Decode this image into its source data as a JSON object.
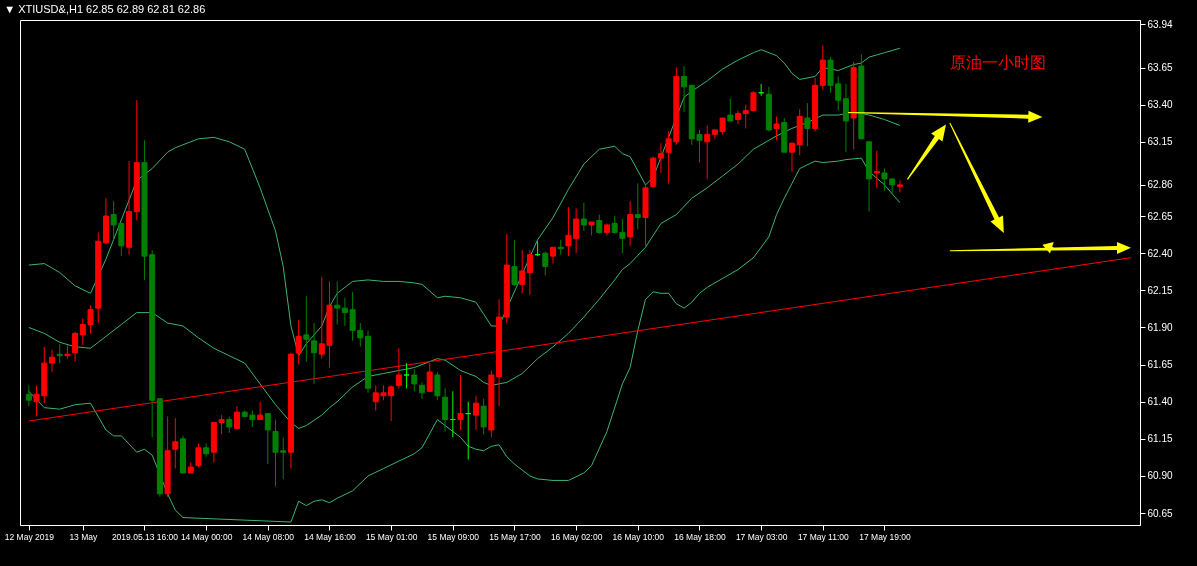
{
  "chart_data": {
    "type": "candlestick",
    "title": "▼ XTIUSD&,H1  62.85 62.89 62.81 62.86",
    "annotations": [
      "原油一小时图"
    ],
    "categories": [
      "12 May 2019",
      null,
      null,
      null,
      null,
      null,
      null,
      "13 May",
      null,
      null,
      null,
      null,
      null,
      null,
      null,
      "2019.05.13 16:00",
      null,
      null,
      null,
      null,
      null,
      null,
      null,
      "14 May 00:00",
      null,
      null,
      null,
      null,
      null,
      null,
      null,
      "14 May 08:00",
      null,
      null,
      null,
      null,
      null,
      null,
      null,
      "14 May 16:00",
      null,
      null,
      null,
      null,
      null,
      null,
      null,
      "15 May 01:00",
      null,
      null,
      null,
      null,
      null,
      null,
      null,
      "15 May 09:00",
      null,
      null,
      null,
      null,
      null,
      null,
      null,
      "15 May 17:00",
      null,
      null,
      null,
      null,
      null,
      null,
      null,
      "16 May 02:00",
      null,
      null,
      null,
      null,
      null,
      null,
      null,
      "16 May 10:00",
      null,
      null,
      null,
      null,
      null,
      null,
      null,
      "16 May 18:00",
      null,
      null,
      null,
      null,
      null,
      null,
      null,
      "17 May 03:00",
      null,
      null,
      null,
      null,
      null,
      null,
      null,
      "17 May 11:00",
      null,
      null,
      null,
      null,
      null,
      null,
      null,
      "17 May 19:00",
      null,
      null,
      null,
      null,
      null,
      null,
      null,
      null,
      null,
      null,
      null,
      null,
      null,
      null,
      null,
      null,
      null,
      null,
      null,
      null,
      null,
      null,
      null,
      null,
      null,
      null,
      null,
      null,
      null,
      null,
      null,
      null
    ],
    "ohlc": [
      [
        61.45,
        61.51,
        61.37,
        61.41
      ],
      [
        61.4,
        61.51,
        61.3,
        61.45
      ],
      [
        61.44,
        61.77,
        61.39,
        61.66
      ],
      [
        61.66,
        61.75,
        61.6,
        61.7
      ],
      [
        61.72,
        61.79,
        61.66,
        61.71
      ],
      [
        61.71,
        61.78,
        61.69,
        61.72
      ],
      [
        61.73,
        61.87,
        61.67,
        61.86
      ],
      [
        61.85,
        61.96,
        61.78,
        61.92
      ],
      [
        61.92,
        62.05,
        61.86,
        62.02
      ],
      [
        62.03,
        62.54,
        61.93,
        62.48
      ],
      [
        62.47,
        62.77,
        62.46,
        62.65
      ],
      [
        62.66,
        62.75,
        62.49,
        62.59
      ],
      [
        62.6,
        62.6,
        62.38,
        62.45
      ],
      [
        62.44,
        63.02,
        62.39,
        62.68
      ],
      [
        62.68,
        63.43,
        62.62,
        63.01
      ],
      [
        63.01,
        63.16,
        62.22,
        62.38
      ],
      [
        62.39,
        62.42,
        61.16,
        61.41
      ],
      [
        61.42,
        61.42,
        60.76,
        60.78
      ],
      [
        60.78,
        61.3,
        60.76,
        61.07
      ],
      [
        61.08,
        61.29,
        60.95,
        61.13
      ],
      [
        61.15,
        61.17,
        60.92,
        60.92
      ],
      [
        60.92,
        60.99,
        60.92,
        60.96
      ],
      [
        60.97,
        61.12,
        60.96,
        61.09
      ],
      [
        61.09,
        61.12,
        61.03,
        61.05
      ],
      [
        61.06,
        61.26,
        60.99,
        61.26
      ],
      [
        61.26,
        61.31,
        61.18,
        61.28
      ],
      [
        61.28,
        61.3,
        61.19,
        61.23
      ],
      [
        61.22,
        61.37,
        61.22,
        61.33
      ],
      [
        61.33,
        61.34,
        61.3,
        61.3
      ],
      [
        61.31,
        61.34,
        61.23,
        61.28
      ],
      [
        61.28,
        61.4,
        61.28,
        61.31
      ],
      [
        61.32,
        61.32,
        60.98,
        61.21
      ],
      [
        61.2,
        61.28,
        60.83,
        61.06
      ],
      [
        61.07,
        61.16,
        60.88,
        61.06
      ],
      [
        61.06,
        61.73,
        60.95,
        61.72
      ],
      [
        61.73,
        61.95,
        61.65,
        61.84
      ],
      [
        61.85,
        62.11,
        61.67,
        61.82
      ],
      [
        61.81,
        61.93,
        61.52,
        61.73
      ],
      [
        61.72,
        62.24,
        61.69,
        61.79
      ],
      [
        61.78,
        62.21,
        61.63,
        62.05
      ],
      [
        62.05,
        62.21,
        61.92,
        62.03
      ],
      [
        62.03,
        62.1,
        61.91,
        62.0
      ],
      [
        62.02,
        62.14,
        61.81,
        61.88
      ],
      [
        61.88,
        61.93,
        61.77,
        61.83
      ],
      [
        61.84,
        61.88,
        61.46,
        61.49
      ],
      [
        61.4,
        61.51,
        61.34,
        61.46
      ],
      [
        61.44,
        61.51,
        61.41,
        61.46
      ],
      [
        61.44,
        61.51,
        61.27,
        61.5
      ],
      [
        61.51,
        61.76,
        61.49,
        61.58
      ],
      [
        61.58,
        61.66,
        61.49,
        61.58
      ],
      [
        61.58,
        61.62,
        61.47,
        61.52
      ],
      [
        61.51,
        61.53,
        61.42,
        61.46
      ],
      [
        61.47,
        61.66,
        61.47,
        61.6
      ],
      [
        61.58,
        61.6,
        61.41,
        61.44
      ],
      [
        61.43,
        61.49,
        61.2,
        61.28
      ],
      [
        61.28,
        61.47,
        61.16,
        61.28
      ],
      [
        61.28,
        61.58,
        61.21,
        61.32
      ],
      [
        61.32,
        61.4,
        61.01,
        61.32
      ],
      [
        61.31,
        61.44,
        61.21,
        61.39
      ],
      [
        61.37,
        61.42,
        61.18,
        61.23
      ],
      [
        61.21,
        61.61,
        61.16,
        61.58
      ],
      [
        61.57,
        62.09,
        61.37,
        61.97
      ],
      [
        61.97,
        62.53,
        61.93,
        62.32
      ],
      [
        62.31,
        62.49,
        62.18,
        62.19
      ],
      [
        62.19,
        62.42,
        62.13,
        62.28
      ],
      [
        62.27,
        62.42,
        62.12,
        62.39
      ],
      [
        62.39,
        62.48,
        62.38,
        62.39
      ],
      [
        62.4,
        62.41,
        62.25,
        62.31
      ],
      [
        62.38,
        62.44,
        62.33,
        62.44
      ],
      [
        62.44,
        62.49,
        62.39,
        62.43
      ],
      [
        62.45,
        62.71,
        62.38,
        62.52
      ],
      [
        62.5,
        62.7,
        62.4,
        62.63
      ],
      [
        62.63,
        62.74,
        62.55,
        62.59
      ],
      [
        62.59,
        62.61,
        62.52,
        62.61
      ],
      [
        62.62,
        62.66,
        62.53,
        62.54
      ],
      [
        62.54,
        62.6,
        62.52,
        62.59
      ],
      [
        62.6,
        62.65,
        62.53,
        62.54
      ],
      [
        62.54,
        62.63,
        62.4,
        62.5
      ],
      [
        62.51,
        62.75,
        62.45,
        62.66
      ],
      [
        62.66,
        62.87,
        62.56,
        62.64
      ],
      [
        62.64,
        62.86,
        62.45,
        62.84
      ],
      [
        62.85,
        63.05,
        62.84,
        63.04
      ],
      [
        63.04,
        63.14,
        62.94,
        63.07
      ],
      [
        63.08,
        63.22,
        62.87,
        63.17
      ],
      [
        63.15,
        63.65,
        63.13,
        63.59
      ],
      [
        63.59,
        63.66,
        63.35,
        63.52
      ],
      [
        63.53,
        63.53,
        63.13,
        63.17
      ],
      [
        63.2,
        63.23,
        63.01,
        63.16
      ],
      [
        63.15,
        63.26,
        62.9,
        63.2
      ],
      [
        63.2,
        63.23,
        63.17,
        63.23
      ],
      [
        63.22,
        63.31,
        63.2,
        63.31
      ],
      [
        63.33,
        63.44,
        63.29,
        63.29
      ],
      [
        63.3,
        63.36,
        63.27,
        63.34
      ],
      [
        63.34,
        63.4,
        63.24,
        63.36
      ],
      [
        63.36,
        63.49,
        63.36,
        63.48
      ],
      [
        63.48,
        63.54,
        63.46,
        63.48
      ],
      [
        63.47,
        63.52,
        63.22,
        63.23
      ],
      [
        63.24,
        63.32,
        63.16,
        63.27
      ],
      [
        63.28,
        63.31,
        63.08,
        63.08
      ],
      [
        63.08,
        63.15,
        62.95,
        63.14
      ],
      [
        63.13,
        63.37,
        63.06,
        63.32
      ],
      [
        63.31,
        63.41,
        63.12,
        63.24
      ],
      [
        63.24,
        63.58,
        63.22,
        63.53
      ],
      [
        63.53,
        63.8,
        63.5,
        63.7
      ],
      [
        63.7,
        63.72,
        63.48,
        63.53
      ],
      [
        63.54,
        63.59,
        63.36,
        63.43
      ],
      [
        63.44,
        63.54,
        63.08,
        63.29
      ],
      [
        63.31,
        63.69,
        63.1,
        63.65
      ],
      [
        63.66,
        63.74,
        63.17,
        63.17
      ],
      [
        63.15,
        63.15,
        62.68,
        62.9
      ],
      [
        62.94,
        63.09,
        62.84,
        62.95
      ],
      [
        62.94,
        62.97,
        62.82,
        62.9
      ],
      [
        62.9,
        62.9,
        62.8,
        62.86
      ],
      [
        62.85,
        62.89,
        62.81,
        62.86
      ],
      null,
      null,
      null,
      null,
      null,
      null,
      null,
      null,
      null,
      null,
      null,
      null,
      null,
      null,
      null,
      null,
      null,
      null,
      null,
      null,
      null,
      null,
      null,
      null,
      null,
      null,
      null,
      null,
      null,
      null
    ],
    "colors": [
      "#008000",
      "#ff0000",
      "#ff0000",
      "#ff0000",
      "#008000",
      "#ff0000",
      "#ff0000",
      "#ff0000",
      "#ff0000",
      "#ff0000",
      "#ff0000",
      "#008000",
      "#008000",
      "#ff0000",
      "#ff0000",
      "#008000",
      "#008000",
      "#008000",
      "#ff0000",
      "#ff0000",
      "#008000",
      "#ff0000",
      "#ff0000",
      "#008000",
      "#ff0000",
      "#ff0000",
      "#008000",
      "#ff0000",
      "#008000",
      "#008000",
      "#ff0000",
      "#008000",
      "#008000",
      "#008000",
      "#ff0000",
      "#ff0000",
      "#008000",
      "#008000",
      "#ff0000",
      "#ff0000",
      "#008000",
      "#008000",
      "#008000",
      "#008000",
      "#008000",
      "#ff0000",
      "#ff0000",
      "#ff0000",
      "#ff0000",
      "#00ff00",
      "#008000",
      "#008000",
      "#ff0000",
      "#008000",
      "#008000",
      "#00ff00",
      "#ff0000",
      "#00ff00",
      "#ff0000",
      "#008000",
      "#ff0000",
      "#ff0000",
      "#ff0000",
      "#008000",
      "#ff0000",
      "#ff0000",
      "#00ff00",
      "#008000",
      "#ff0000",
      "#008000",
      "#ff0000",
      "#ff0000",
      "#008000",
      "#ff0000",
      "#008000",
      "#ff0000",
      "#008000",
      "#008000",
      "#ff0000",
      "#008000",
      "#ff0000",
      "#ff0000",
      "#ff0000",
      "#ff0000",
      "#ff0000",
      "#008000",
      "#008000",
      "#008000",
      "#ff0000",
      "#ff0000",
      "#ff0000",
      "#008000",
      "#ff0000",
      "#ff0000",
      "#ff0000",
      "#00ff00",
      "#008000",
      "#ff0000",
      "#008000",
      "#ff0000",
      "#ff0000",
      "#008000",
      "#ff0000",
      "#ff0000",
      "#008000",
      "#008000",
      "#008000",
      "#ff0000",
      "#008000",
      "#008000",
      "#ff0000",
      "#008000",
      "#008000",
      "#ff0000",
      null,
      null,
      null,
      null,
      null,
      null,
      null,
      null,
      null,
      null,
      null,
      null,
      null,
      null,
      null,
      null,
      null,
      null,
      null,
      null,
      null,
      null,
      null,
      null,
      null,
      null,
      null,
      null,
      null,
      null
    ],
    "series": [
      {
        "type": "line",
        "color": "#3cb371",
        "values": [
          62.32,
          null,
          62.33,
          null,
          62.27,
          null,
          62.18,
          null,
          62.13,
          null,
          62.36,
          null,
          null,
          null,
          62.89,
          null,
          62.97,
          null,
          63.08,
          63.11,
          63.13,
          null,
          63.17,
          null,
          63.18,
          null,
          63.15,
          null,
          63.1,
          null,
          62.84,
          null,
          62.55,
          62.31,
          61.91,
          61.71,
          61.79,
          null,
          61.91,
          62.04,
          62.13,
          null,
          62.21,
          null,
          62.22,
          null,
          62.21,
          null,
          62.21,
          null,
          62.2,
          62.19,
          null,
          62.1,
          62.11,
          null,
          62.1,
          null,
          62.07,
          null,
          61.91,
          61.91,
          null,
          null,
          null,
          null,
          62.49,
          null,
          62.64,
          null,
          62.83,
          null,
          63.0,
          null,
          63.1,
          null,
          63.12,
          63.07,
          63.05,
          null,
          62.86,
          62.91,
          null,
          null,
          null,
          63.45,
          63.49,
          null,
          63.56,
          null,
          63.64,
          null,
          63.7,
          null,
          63.75,
          63.77,
          null,
          63.73,
          63.68,
          63.61,
          63.57,
          null,
          63.59,
          63.65,
          null,
          63.63,
          null,
          63.67,
          63.68,
          63.72,
          null,
          63.75,
          null,
          63.78,
          null,
          null,
          null,
          null,
          null,
          null,
          null,
          null,
          null,
          null,
          null,
          null,
          null,
          null,
          null,
          null,
          null,
          null,
          null,
          null,
          null,
          null,
          null,
          null,
          null,
          null,
          null,
          null,
          null,
          null
        ]
      },
      {
        "type": "line",
        "color": "#3cb371",
        "values": [
          61.9,
          null,
          61.86,
          null,
          61.8,
          null,
          61.77,
          null,
          61.76,
          null,
          61.84,
          null,
          61.92,
          null,
          62.0,
          null,
          62.0,
          null,
          61.93,
          null,
          61.91,
          null,
          61.83,
          null,
          61.76,
          null,
          61.71,
          null,
          61.66,
          null,
          61.52,
          null,
          61.38,
          null,
          61.26,
          61.22,
          61.24,
          null,
          61.31,
          61.36,
          61.4,
          null,
          61.5,
          null,
          61.57,
          null,
          61.59,
          null,
          61.61,
          null,
          61.63,
          null,
          61.67,
          61.69,
          61.68,
          null,
          61.61,
          null,
          61.57,
          61.53,
          61.51,
          null,
          61.53,
          61.56,
          61.59,
          null,
          61.69,
          null,
          61.77,
          null,
          61.86,
          null,
          61.97,
          null,
          62.09,
          null,
          62.22,
          62.29,
          62.33,
          null,
          62.44,
          null,
          62.6,
          null,
          62.66,
          null,
          62.77,
          null,
          62.84,
          null,
          62.92,
          null,
          63.0,
          null,
          63.1,
          null,
          63.16,
          63.19,
          null,
          63.24,
          null,
          63.28,
          null,
          63.33,
          null,
          63.33,
          null,
          63.35,
          null,
          63.33,
          null,
          63.3,
          null,
          63.26,
          null,
          null,
          null,
          null,
          null,
          null,
          null,
          null,
          null,
          null,
          null,
          null,
          null,
          null,
          null,
          null,
          null,
          null,
          null,
          null,
          null,
          null,
          null,
          null,
          null,
          null,
          null,
          null,
          null,
          null
        ]
      },
      {
        "type": "line",
        "color": "#3cb371",
        "values": [
          61.47,
          null,
          61.36,
          null,
          61.35,
          null,
          61.38,
          null,
          61.39,
          null,
          61.21,
          61.17,
          61.17,
          null,
          61.06,
          61.08,
          61.04,
          null,
          60.78,
          60.67,
          60.62,
          null,
          null,
          null,
          null,
          null,
          null,
          null,
          null,
          null,
          null,
          null,
          null,
          null,
          60.59,
          60.73,
          60.7,
          60.73,
          60.74,
          60.72,
          60.75,
          null,
          60.8,
          null,
          60.9,
          null,
          60.95,
          null,
          61.0,
          null,
          61.05,
          61.09,
          null,
          61.28,
          61.24,
          null,
          61.16,
          61.1,
          61.08,
          61.07,
          61.1,
          61.11,
          61.03,
          60.98,
          null,
          60.9,
          60.88,
          null,
          60.87,
          null,
          60.87,
          null,
          60.92,
          60.97,
          null,
          61.2,
          null,
          61.52,
          61.63,
          61.88,
          62.09,
          62.14,
          62.13,
          62.13,
          62.06,
          62.03,
          62.07,
          62.13,
          62.17,
          null,
          62.23,
          null,
          62.29,
          null,
          62.37,
          null,
          62.51,
          62.66,
          62.77,
          null,
          62.97,
          null,
          63.02,
          63.01,
          null,
          63.02,
          63.03,
          null,
          63.04,
          62.95,
          null,
          62.86,
          null,
          62.74,
          null,
          null,
          null,
          null,
          null,
          null,
          null,
          null,
          null,
          null,
          null,
          null,
          null,
          null,
          null,
          null,
          null,
          null,
          null,
          null,
          null,
          null,
          null,
          null,
          null,
          null,
          null,
          null,
          null,
          null
        ]
      },
      {
        "type": "line",
        "color": "#ff0000",
        "values": [
          61.27,
          null,
          null,
          null,
          null,
          null,
          null,
          null,
          null,
          null,
          null,
          null,
          null,
          null,
          null,
          null,
          null,
          null,
          null,
          null,
          null,
          null,
          null,
          null,
          null,
          null,
          null,
          null,
          null,
          null,
          null,
          null,
          null,
          null,
          null,
          null,
          null,
          null,
          null,
          null,
          null,
          null,
          null,
          null,
          null,
          null,
          null,
          null,
          null,
          null,
          null,
          null,
          null,
          null,
          null,
          null,
          null,
          null,
          null,
          null,
          null,
          null,
          null,
          null,
          null,
          null,
          null,
          null,
          null,
          null,
          null,
          null,
          null,
          null,
          null,
          null,
          null,
          null,
          null,
          null,
          null,
          null,
          null,
          null,
          null,
          null,
          null,
          null,
          null,
          null,
          null,
          null,
          null,
          null,
          null,
          null,
          null,
          null,
          null,
          null,
          null,
          null,
          null,
          null,
          null,
          null,
          null,
          null,
          null,
          null,
          null,
          null,
          null,
          null,
          null,
          null,
          null,
          null,
          null,
          null,
          null,
          null,
          null,
          null,
          null,
          null,
          null,
          null,
          null,
          null,
          null,
          null,
          null,
          null,
          null,
          null,
          null,
          null,
          null,
          null,
          null,
          null,
          null,
          62.37
        ]
      }
    ],
    "ylim": [
      60.57,
      63.97
    ],
    "yticks": [
      63.94,
      63.65,
      {
        "value": 63.4,
        "label": "63.40"
      },
      63.15,
      62.86,
      62.65,
      {
        "value": 62.4,
        "label": "62.40"
      },
      62.15,
      {
        "value": 61.9,
        "label": "61.90"
      },
      61.65,
      {
        "value": 61.4,
        "label": "61.40"
      },
      61.15,
      {
        "value": 60.9,
        "label": "60.90"
      },
      60.65
    ]
  }
}
